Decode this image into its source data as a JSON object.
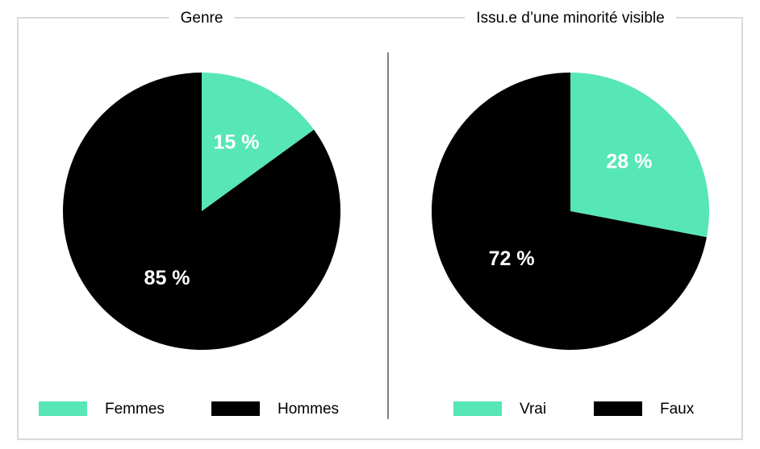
{
  "chart_data": [
    {
      "type": "pie",
      "title": "Genre",
      "categories": [
        "Femmes",
        "Hommes"
      ],
      "values": [
        15,
        85
      ],
      "value_labels": [
        "15 %",
        "85 %"
      ],
      "colors": [
        "#57e6b6",
        "#000000"
      ]
    },
    {
      "type": "pie",
      "title": "Issu.e d’une minorité visible",
      "categories": [
        "Vrai",
        "Faux"
      ],
      "values": [
        28,
        72
      ],
      "value_labels": [
        "28 %",
        "72 %"
      ],
      "colors": [
        "#57e6b6",
        "#000000"
      ]
    }
  ]
}
